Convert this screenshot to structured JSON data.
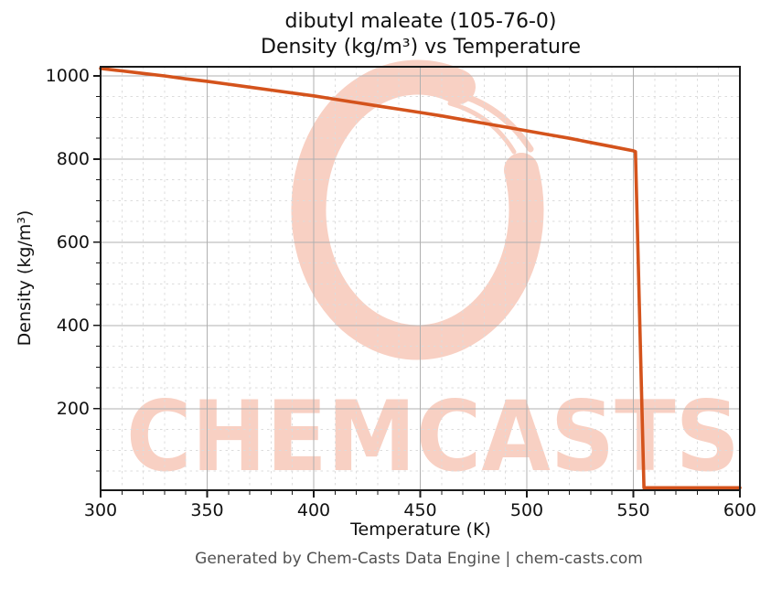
{
  "title": {
    "line1": "dibutyl maleate (105-76-0)",
    "line2": "Density (kg/m³) vs Temperature"
  },
  "footer": "Generated by Chem-Casts Data Engine | chem-casts.com",
  "watermark": {
    "text": "CHEMCASTS",
    "symbol": "brushstroke-ring",
    "color": "#f8d0c3"
  },
  "colors": {
    "curve": "#d4531c",
    "spine": "#1a1a1a",
    "grid_major": "#b0b0b0",
    "grid_minor": "#dcdcdc",
    "tick": "#1a1a1a",
    "text": "#111111",
    "footer_text": "#505050",
    "watermark": "#f8d0c3"
  },
  "chart_data": {
    "type": "line",
    "title": "dibutyl maleate (105-76-0) — Density (kg/m³) vs Temperature",
    "xlabel": "Temperature (K)",
    "ylabel": "Density (kg/m³)",
    "xlim": [
      300,
      600
    ],
    "ylim": [
      4,
      1022
    ],
    "x_ticks": [
      300,
      350,
      400,
      450,
      500,
      550,
      600
    ],
    "y_ticks": [
      200,
      400,
      600,
      800,
      1000
    ],
    "x_minor_step": 10,
    "y_minor_step": 50,
    "grid": true,
    "legend": false,
    "series": [
      {
        "name": "density",
        "x": [
          300,
          310,
          320,
          330,
          340,
          350,
          360,
          370,
          380,
          390,
          400,
          410,
          420,
          430,
          440,
          450,
          460,
          470,
          480,
          490,
          500,
          510,
          520,
          530,
          540,
          550,
          551,
          555,
          560,
          570,
          580,
          590,
          600
        ],
        "y": [
          1018,
          1012,
          1006,
          1000,
          993,
          987,
          980,
          973,
          966,
          959,
          952,
          944,
          936,
          928,
          920,
          912,
          904,
          895,
          886,
          877,
          868,
          859,
          850,
          840,
          830,
          820,
          818,
          10,
          10,
          10,
          10,
          10,
          10
        ]
      }
    ]
  }
}
